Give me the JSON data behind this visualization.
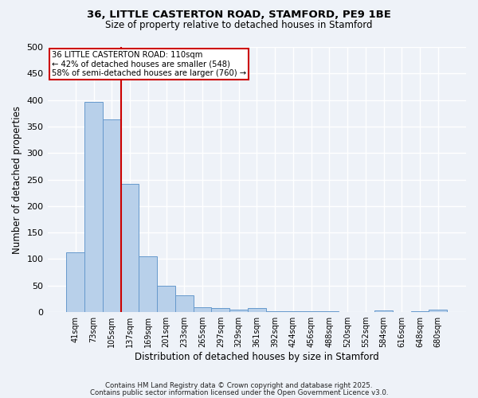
{
  "title_line1": "36, LITTLE CASTERTON ROAD, STAMFORD, PE9 1BE",
  "title_line2": "Size of property relative to detached houses in Stamford",
  "xlabel": "Distribution of detached houses by size in Stamford",
  "ylabel": "Number of detached properties",
  "categories": [
    "41sqm",
    "73sqm",
    "105sqm",
    "137sqm",
    "169sqm",
    "201sqm",
    "233sqm",
    "265sqm",
    "297sqm",
    "329sqm",
    "361sqm",
    "392sqm",
    "424sqm",
    "456sqm",
    "488sqm",
    "520sqm",
    "552sqm",
    "584sqm",
    "616sqm",
    "648sqm",
    "680sqm"
  ],
  "values": [
    113,
    397,
    363,
    242,
    105,
    50,
    31,
    9,
    7,
    5,
    7,
    1,
    2,
    1,
    1,
    0,
    0,
    3,
    0,
    1,
    4
  ],
  "bar_color": "#b8d0ea",
  "bar_edge_color": "#6699cc",
  "annotation_line1": "36 LITTLE CASTERTON ROAD: 110sqm",
  "annotation_line2": "← 42% of detached houses are smaller (548)",
  "annotation_line3": "58% of semi-detached houses are larger (760) →",
  "annotation_box_color": "#cc0000",
  "annotation_box_fill": "#ffffff",
  "red_line_x": 2.5,
  "ylim": [
    0,
    500
  ],
  "yticks": [
    0,
    50,
    100,
    150,
    200,
    250,
    300,
    350,
    400,
    450,
    500
  ],
  "background_color": "#eef2f8",
  "grid_color": "#ffffff",
  "footnote_line1": "Contains HM Land Registry data © Crown copyright and database right 2025.",
  "footnote_line2": "Contains public sector information licensed under the Open Government Licence v3.0."
}
